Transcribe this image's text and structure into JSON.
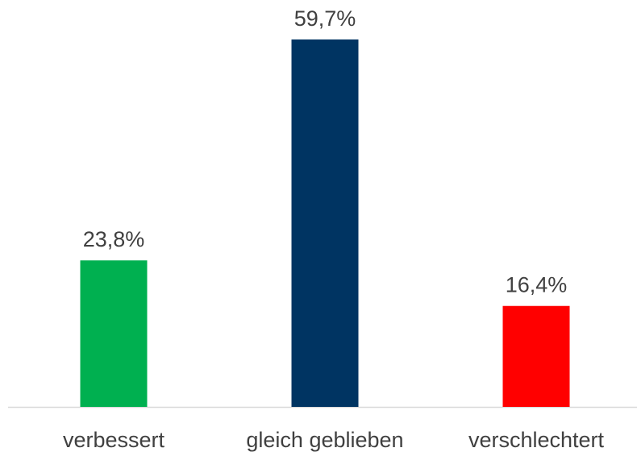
{
  "chart_data": {
    "type": "bar",
    "categories": [
      "verbessert",
      "gleich geblieben",
      "verschlechtert"
    ],
    "values": [
      23.8,
      59.7,
      16.4
    ],
    "value_labels": [
      "23,8%",
      "59,7%",
      "16,4%"
    ],
    "colors": [
      "#00b050",
      "#003462",
      "#ff0000"
    ]
  }
}
